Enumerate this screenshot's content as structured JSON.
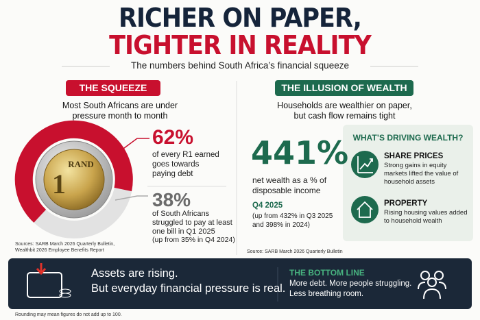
{
  "header": {
    "title_line1": "RICHER ON PAPER,",
    "title_line2": "TIGHTER IN REALITY",
    "subtitle": "The numbers behind South Africa’s financial squeeze"
  },
  "squeeze": {
    "badge": "THE SQUEEZE",
    "intro": "Most South Africans are under pressure month to month",
    "coin_label": "RAND",
    "coin_value": "1",
    "stat1": {
      "value": "62%",
      "text": "of every R1 earned goes towards paying debt"
    },
    "stat2": {
      "value": "38%",
      "text": "of South Africans struggled to pay at least one bill in Q1 2025",
      "note": "(up from 35% in Q4 2024)"
    },
    "sources": "Sources: SARB March 2026 Quarterly Bulletin, Wealthbit 2026 Employee Benefits Report"
  },
  "wealth": {
    "badge": "THE ILLUSION OF WEALTH",
    "intro": "Households are wealthier on paper, but cash flow remains tight",
    "value": "441%",
    "text": "net wealth as a % of disposable income",
    "period": "Q4 2025",
    "note": "(up from 432% in Q3 2025 and 398% in 2024)",
    "source": "Source: SARB March 2026 Quarterly Bulletin",
    "drivers": {
      "title": "WHAT’S DRIVING WEALTH?",
      "items": [
        {
          "title": "SHARE PRICES",
          "text": "Strong gains in equity markets lifted the value of household assets"
        },
        {
          "title": "PROPERTY",
          "text": "Rising housing values added to household wealth"
        }
      ]
    }
  },
  "bottom": {
    "line1": "Assets are rising.",
    "line2": "But everyday financial pressure is real.",
    "label": "THE BOTTOM LINE",
    "text": "More debt. More people struggling. Less breathing room."
  },
  "footnote": "Rounding may mean figures do not add up to 100."
}
